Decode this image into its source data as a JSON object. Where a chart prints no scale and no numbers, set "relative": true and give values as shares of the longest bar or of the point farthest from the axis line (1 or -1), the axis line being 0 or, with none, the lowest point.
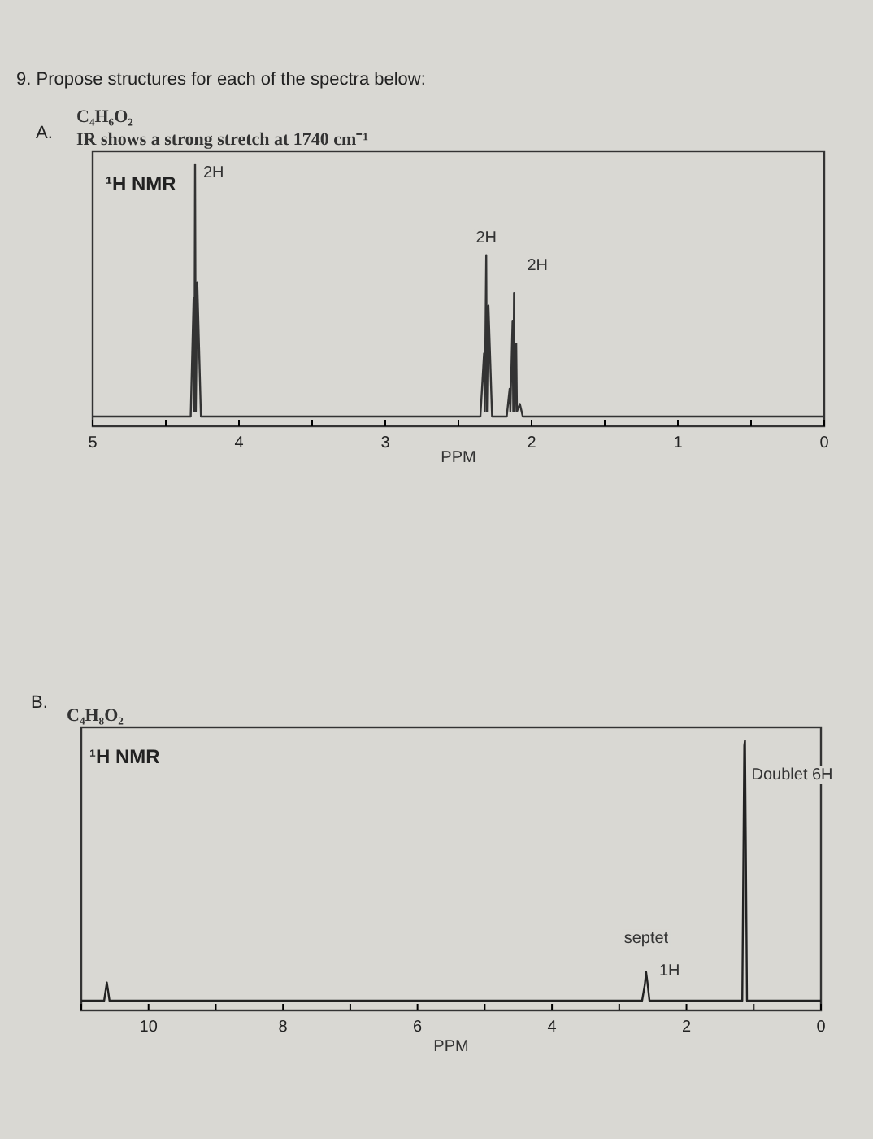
{
  "chart_data": [
    {
      "type": "line",
      "title": "C₄H₆O₂",
      "subtitle": "IR shows a strong stretch at 1740 cm⁻¹",
      "xlabel": "PPM",
      "relative": true,
      "annotations": [
        "9.  Propose structures for each of the spectra below:",
        "A.",
        "¹H NMR",
        {
          "text": "2H",
          "x": 4.3,
          "y": 1
        },
        {
          "text": "2H",
          "x": 2.31,
          "y": 0.64
        },
        {
          "text": "2H",
          "x": 2.12,
          "y": 0.49
        }
      ],
      "xlim": [
        5,
        0
      ],
      "xticks": [
        5,
        {
          "value": 4.5,
          "label": null
        },
        4,
        {
          "value": 3.5,
          "label": null
        },
        3,
        {
          "value": 2.5,
          "label": null
        },
        2,
        {
          "value": 1.5,
          "label": null
        },
        1,
        {
          "value": 0.5,
          "label": null
        },
        0
      ],
      "series": [
        {
          "color": "#333333",
          "x": [
            5,
            4.33,
            4.31,
            4.305,
            4.3,
            4.295,
            4.285,
            4.26,
            2.35,
            2.325,
            2.32,
            2.31,
            2.305,
            2.295,
            2.27,
            2.17,
            2.15,
            2.145,
            2.13,
            2.125,
            2.12,
            2.115,
            2.105,
            2.1,
            2.08,
            2.06,
            0
          ],
          "values": [
            0,
            0,
            0.47,
            0.02,
            1,
            0.02,
            0.53,
            0,
            0,
            0.25,
            0.02,
            0.64,
            0.02,
            0.44,
            0,
            0,
            0.11,
            0.02,
            0.38,
            0.02,
            0.49,
            0.02,
            0.29,
            0.02,
            0.05,
            0,
            0
          ]
        }
      ]
    },
    {
      "type": "line",
      "title": "C₄H₈O₂",
      "xlabel": "PPM",
      "relative": true,
      "annotations": [
        "B.",
        "¹H NMR",
        {
          "text": "septet",
          "x": 2.6,
          "y": 0.11
        },
        {
          "text": "1H",
          "x": 2.6,
          "y": 0.11
        },
        {
          "text": "Doublet 6H",
          "x": 1.13,
          "y": 1
        }
      ],
      "xlim": [
        11,
        0
      ],
      "xticks": [
        {
          "value": 11,
          "label": null
        },
        10,
        {
          "value": 9,
          "label": null
        },
        8,
        {
          "value": 7,
          "label": null
        },
        6,
        {
          "value": 5,
          "label": null
        },
        4,
        {
          "value": 3,
          "label": null
        },
        2,
        {
          "value": 1,
          "label": null
        },
        0
      ],
      "series": [
        {
          "color": "#222222",
          "x": [
            11,
            10.66,
            10.62,
            10.58,
            2.66,
            2.62,
            2.6,
            2.58,
            2.55,
            1.17,
            1.14,
            1.13,
            1.1,
            0
          ],
          "values": [
            0,
            0,
            0.07,
            0,
            0,
            0.06,
            0.11,
            0.07,
            0,
            0,
            0.98,
            1,
            0,
            0
          ]
        }
      ]
    }
  ]
}
